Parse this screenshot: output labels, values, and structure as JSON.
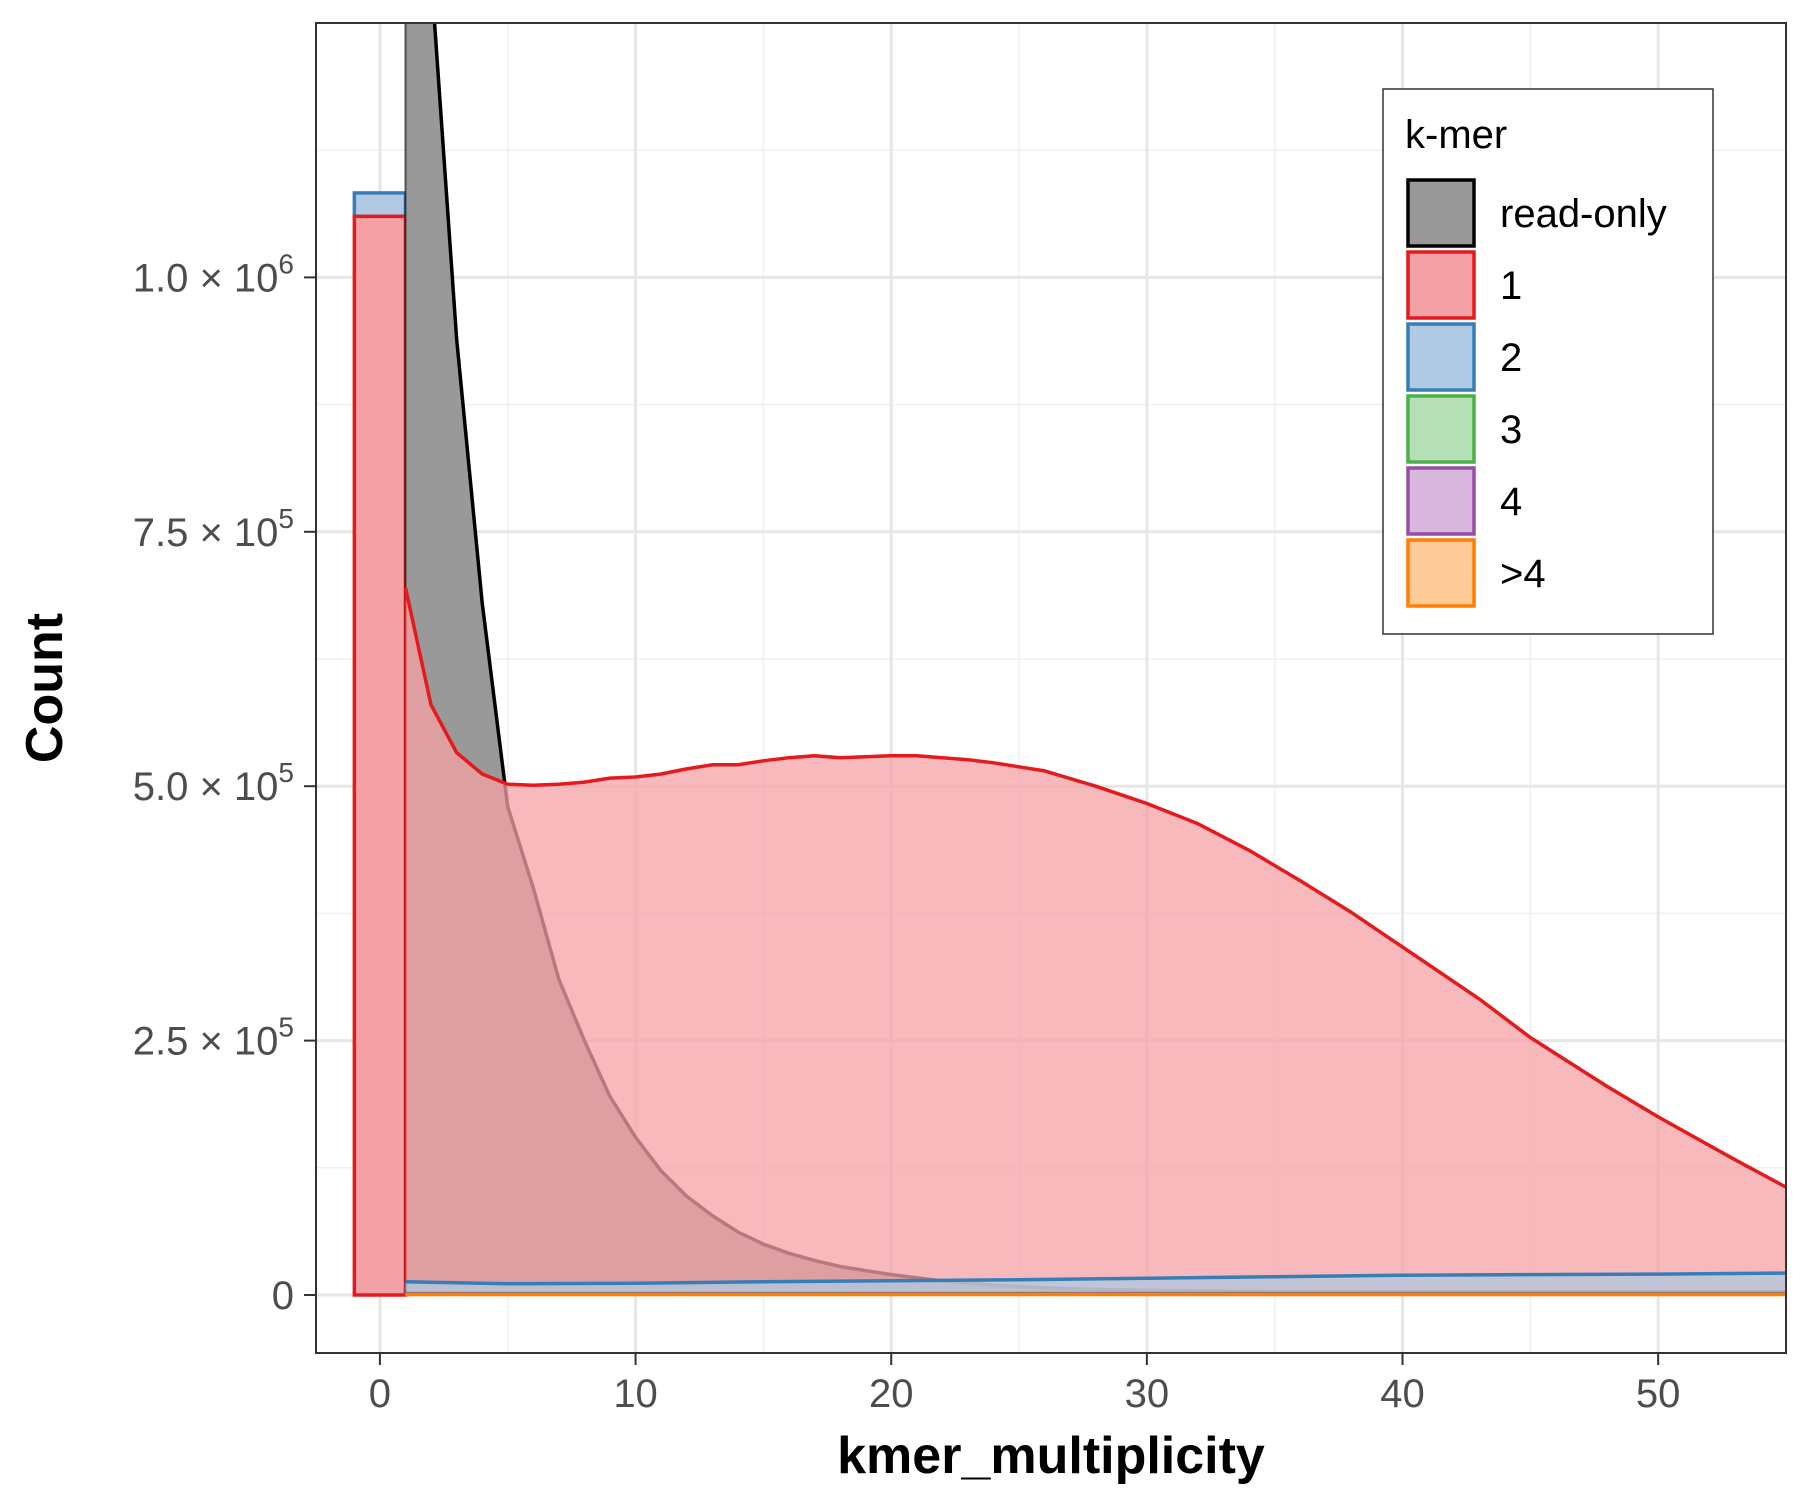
{
  "chart_data": {
    "type": "area",
    "title": "",
    "xlabel": "kmer_multiplicity",
    "ylabel": "Count",
    "xlim": [
      -2.5,
      55
    ],
    "ylim": [
      -57000,
      1250000
    ],
    "x_ticks": [
      0,
      10,
      20,
      30,
      40,
      50
    ],
    "x_tick_labels": [
      "0",
      "10",
      "20",
      "30",
      "40",
      "50"
    ],
    "y_ticks": [
      0,
      250000,
      500000,
      750000,
      1000000
    ],
    "y_tick_labels": [
      {
        "mantissa": "0",
        "exponent": ""
      },
      {
        "mantissa": "2.5",
        "exponent": "5"
      },
      {
        "mantissa": "5.0",
        "exponent": "5"
      },
      {
        "mantissa": "7.5",
        "exponent": "5"
      },
      {
        "mantissa": "1.0",
        "exponent": "6"
      }
    ],
    "grid": true,
    "legend": {
      "title": "k-mer",
      "position": "top-right"
    },
    "zero_bar": {
      "x_range": [
        -1,
        1
      ],
      "series": "1",
      "value": 1060000,
      "stacked_top_series": "2",
      "stacked_top_value": 1083000
    },
    "series": [
      {
        "name": "read-only",
        "fill": "#999999",
        "stroke": "#000000",
        "x": [
          1,
          2,
          3,
          4,
          5,
          6,
          7,
          8,
          9,
          10,
          11,
          12,
          13,
          14,
          15,
          16,
          17,
          18,
          19,
          20,
          22,
          24,
          26,
          28,
          30,
          35,
          40,
          45,
          50,
          55
        ],
        "y": [
          1450000,
          1300000,
          940000,
          680000,
          480000,
          400000,
          310000,
          250000,
          195000,
          155000,
          122000,
          97000,
          78000,
          62000,
          50000,
          41000,
          34000,
          28000,
          24000,
          20000,
          14000,
          9500,
          7000,
          5500,
          4500,
          3500,
          3000,
          3000,
          3000,
          3000
        ]
      },
      {
        "name": "1",
        "fill": "#f4a1a5",
        "stroke": "#e41a1c",
        "x": [
          1,
          2,
          3,
          4,
          5,
          6,
          7,
          8,
          9,
          10,
          11,
          12,
          13,
          14,
          15,
          16,
          17,
          18,
          19,
          20,
          21,
          22,
          23,
          24,
          26,
          28,
          30,
          32,
          34,
          36,
          38,
          40,
          43,
          45,
          48,
          50,
          53,
          55
        ],
        "y": [
          695000,
          580000,
          533000,
          512000,
          502000,
          501000,
          502000,
          504000,
          508000,
          509000,
          512000,
          517000,
          521000,
          521000,
          525000,
          528000,
          530000,
          528000,
          529000,
          530000,
          530000,
          528000,
          526000,
          523000,
          515000,
          500000,
          483000,
          463000,
          437000,
          407000,
          376000,
          342000,
          291000,
          253000,
          205000,
          175000,
          133000,
          106000
        ]
      },
      {
        "name": "2",
        "fill": "#afcae2",
        "stroke": "#377eb8",
        "x": [
          1,
          5,
          10,
          15,
          20,
          25,
          30,
          35,
          40,
          45,
          50,
          55
        ],
        "y": [
          13000,
          11000,
          11500,
          13000,
          14000,
          15000,
          16500,
          18000,
          19500,
          20000,
          20500,
          21500
        ]
      },
      {
        "name": "3",
        "fill": "#b5dfb4",
        "stroke": "#4daf4a",
        "x": [
          1,
          55
        ],
        "y": [
          1500,
          1500
        ]
      },
      {
        "name": "4",
        "fill": "#d7b8dc",
        "stroke": "#984ea3",
        "x": [
          1,
          55
        ],
        "y": [
          1000,
          1000
        ]
      },
      {
        "name": ">4",
        "fill": "#ffcc99",
        "stroke": "#ff7f00",
        "x": [
          1,
          55
        ],
        "y": [
          500,
          500
        ]
      }
    ]
  }
}
